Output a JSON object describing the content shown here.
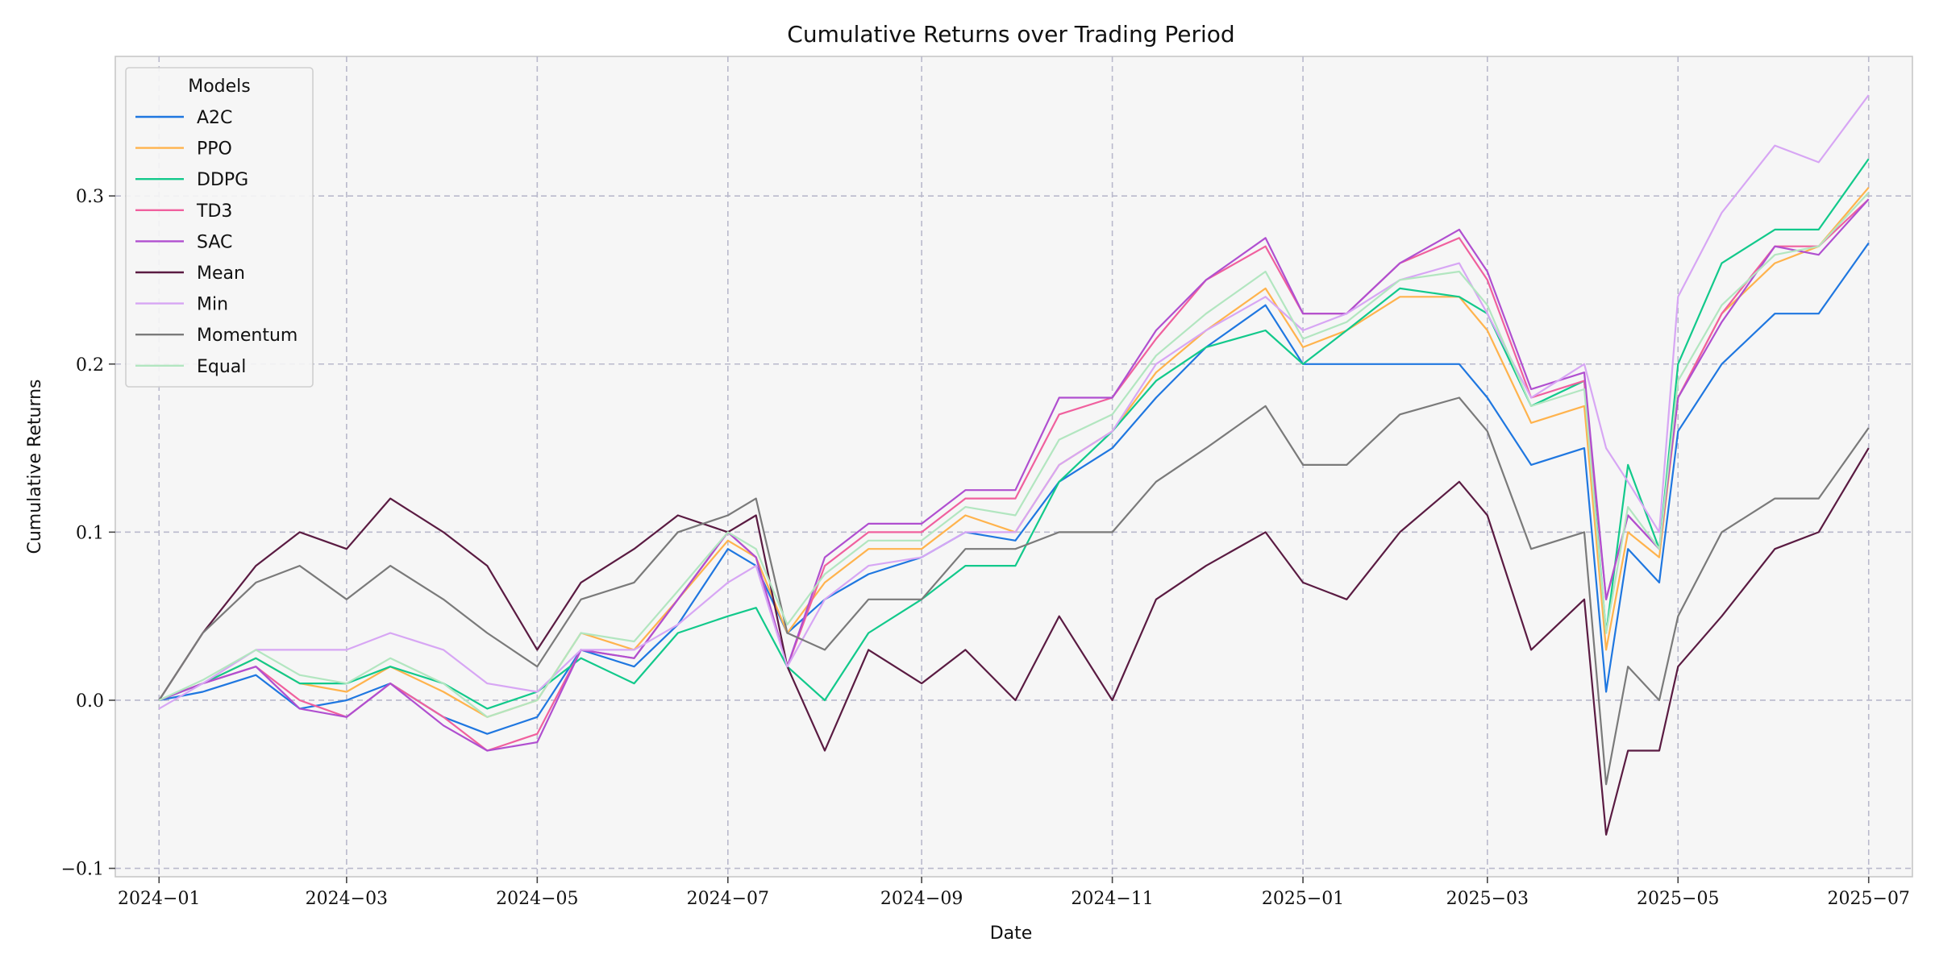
{
  "chart_data": {
    "type": "line",
    "title": "Cumulative Returns over Trading Period",
    "xlabel": "Date",
    "ylabel": "Cumulative Returns",
    "x_range": [
      "2023-12-18",
      "2025-07-15"
    ],
    "ylim": [
      -0.105,
      0.383
    ],
    "x_ticks": [
      {
        "date": "2024-01-01",
        "label": "2024−01"
      },
      {
        "date": "2024-03-01",
        "label": "2024−03"
      },
      {
        "date": "2024-05-01",
        "label": "2024−05"
      },
      {
        "date": "2024-07-01",
        "label": "2024−07"
      },
      {
        "date": "2024-09-01",
        "label": "2024−09"
      },
      {
        "date": "2024-11-01",
        "label": "2024−11"
      },
      {
        "date": "2025-01-01",
        "label": "2025−01"
      },
      {
        "date": "2025-03-01",
        "label": "2025−03"
      },
      {
        "date": "2025-05-01",
        "label": "2025−05"
      },
      {
        "date": "2025-07-01",
        "label": "2025−07"
      }
    ],
    "y_ticks": [
      {
        "value": -0.1,
        "label": "−0.1"
      },
      {
        "value": 0.0,
        "label": "0.0"
      },
      {
        "value": 0.1,
        "label": "0.1"
      },
      {
        "value": 0.2,
        "label": "0.2"
      },
      {
        "value": 0.3,
        "label": "0.3"
      }
    ],
    "grid": true,
    "legend": {
      "title": "Models",
      "placement": "top-left"
    },
    "x": [
      "2024-01-01",
      "2024-01-15",
      "2024-02-01",
      "2024-02-15",
      "2024-03-01",
      "2024-03-15",
      "2024-04-01",
      "2024-04-15",
      "2024-05-01",
      "2024-05-15",
      "2024-06-01",
      "2024-06-15",
      "2024-07-01",
      "2024-07-10",
      "2024-07-20",
      "2024-08-01",
      "2024-08-15",
      "2024-09-01",
      "2024-09-15",
      "2024-10-01",
      "2024-10-15",
      "2024-11-01",
      "2024-11-15",
      "2024-12-01",
      "2024-12-20",
      "2025-01-01",
      "2025-01-15",
      "2025-02-01",
      "2025-02-20",
      "2025-03-01",
      "2025-03-15",
      "2025-04-01",
      "2025-04-08",
      "2025-04-15",
      "2025-04-25",
      "2025-05-01",
      "2025-05-15",
      "2025-06-01",
      "2025-06-15",
      "2025-07-01"
    ],
    "series": [
      {
        "name": "A2C",
        "color": "#1f77e0",
        "values": [
          0.0,
          0.005,
          0.015,
          -0.005,
          0.0,
          0.01,
          -0.01,
          -0.02,
          -0.01,
          0.03,
          0.02,
          0.045,
          0.09,
          0.08,
          0.04,
          0.06,
          0.075,
          0.085,
          0.1,
          0.095,
          0.13,
          0.15,
          0.18,
          0.21,
          0.235,
          0.2,
          0.2,
          0.2,
          0.2,
          0.18,
          0.14,
          0.15,
          0.005,
          0.09,
          0.07,
          0.16,
          0.2,
          0.23,
          0.23,
          0.272
        ]
      },
      {
        "name": "PPO",
        "color": "#ffb34d",
        "values": [
          0.0,
          0.01,
          0.025,
          0.01,
          0.005,
          0.02,
          0.005,
          -0.01,
          0.0,
          0.04,
          0.03,
          0.06,
          0.095,
          0.085,
          0.04,
          0.07,
          0.09,
          0.09,
          0.11,
          0.1,
          0.14,
          0.16,
          0.195,
          0.22,
          0.245,
          0.21,
          0.22,
          0.24,
          0.24,
          0.22,
          0.165,
          0.175,
          0.03,
          0.1,
          0.085,
          0.18,
          0.23,
          0.26,
          0.27,
          0.305
        ]
      },
      {
        "name": "DDPG",
        "color": "#12c98b",
        "values": [
          0.0,
          0.01,
          0.025,
          0.01,
          0.01,
          0.02,
          0.01,
          -0.005,
          0.005,
          0.025,
          0.01,
          0.04,
          0.05,
          0.055,
          0.02,
          0.0,
          0.04,
          0.06,
          0.08,
          0.08,
          0.13,
          0.16,
          0.19,
          0.21,
          0.22,
          0.2,
          0.22,
          0.245,
          0.24,
          0.23,
          0.175,
          0.19,
          0.04,
          0.14,
          0.09,
          0.2,
          0.26,
          0.28,
          0.28,
          0.322
        ]
      },
      {
        "name": "TD3",
        "color": "#f0609e",
        "values": [
          0.0,
          0.01,
          0.02,
          0.0,
          -0.01,
          0.01,
          -0.01,
          -0.03,
          -0.02,
          0.03,
          0.025,
          0.06,
          0.1,
          0.085,
          0.02,
          0.08,
          0.1,
          0.1,
          0.12,
          0.12,
          0.17,
          0.18,
          0.215,
          0.25,
          0.27,
          0.23,
          0.23,
          0.26,
          0.275,
          0.25,
          0.18,
          0.19,
          0.06,
          0.11,
          0.09,
          0.18,
          0.23,
          0.27,
          0.27,
          0.298
        ]
      },
      {
        "name": "SAC",
        "color": "#b04fd0",
        "values": [
          0.0,
          0.01,
          0.02,
          -0.005,
          -0.01,
          0.01,
          -0.015,
          -0.03,
          -0.025,
          0.03,
          0.025,
          0.06,
          0.1,
          0.085,
          0.02,
          0.085,
          0.105,
          0.105,
          0.125,
          0.125,
          0.18,
          0.18,
          0.22,
          0.25,
          0.275,
          0.23,
          0.23,
          0.26,
          0.28,
          0.255,
          0.185,
          0.195,
          0.06,
          0.11,
          0.09,
          0.18,
          0.225,
          0.27,
          0.265,
          0.298
        ]
      },
      {
        "name": "Mean",
        "color": "#5a1b42",
        "values": [
          0.0,
          0.04,
          0.08,
          0.1,
          0.09,
          0.12,
          0.1,
          0.08,
          0.03,
          0.07,
          0.09,
          0.11,
          0.1,
          0.11,
          0.02,
          -0.03,
          0.03,
          0.01,
          0.03,
          0.0,
          0.05,
          0.0,
          0.06,
          0.08,
          0.1,
          0.07,
          0.06,
          0.1,
          0.13,
          0.11,
          0.03,
          0.06,
          -0.08,
          -0.03,
          -0.03,
          0.02,
          0.05,
          0.09,
          0.1,
          0.15
        ]
      },
      {
        "name": "Min",
        "color": "#d7a6f4",
        "values": [
          -0.005,
          0.01,
          0.03,
          0.03,
          0.03,
          0.04,
          0.03,
          0.01,
          0.005,
          0.03,
          0.03,
          0.045,
          0.07,
          0.08,
          0.02,
          0.06,
          0.08,
          0.085,
          0.1,
          0.1,
          0.14,
          0.16,
          0.2,
          0.22,
          0.24,
          0.22,
          0.23,
          0.25,
          0.26,
          0.23,
          0.18,
          0.2,
          0.15,
          0.13,
          0.1,
          0.24,
          0.29,
          0.33,
          0.32,
          0.36
        ]
      },
      {
        "name": "Momentum",
        "color": "#7a7a7a",
        "values": [
          0.0,
          0.04,
          0.07,
          0.08,
          0.06,
          0.08,
          0.06,
          0.04,
          0.02,
          0.06,
          0.07,
          0.1,
          0.11,
          0.12,
          0.04,
          0.03,
          0.06,
          0.06,
          0.09,
          0.09,
          0.1,
          0.1,
          0.13,
          0.15,
          0.175,
          0.14,
          0.14,
          0.17,
          0.18,
          0.16,
          0.09,
          0.1,
          -0.05,
          0.02,
          0.0,
          0.05,
          0.1,
          0.12,
          0.12,
          0.162
        ]
      },
      {
        "name": "Equal",
        "color": "#b2e6c0",
        "values": [
          0.0,
          0.012,
          0.03,
          0.015,
          0.01,
          0.025,
          0.01,
          -0.01,
          0.0,
          0.04,
          0.035,
          0.065,
          0.1,
          0.09,
          0.045,
          0.075,
          0.095,
          0.095,
          0.115,
          0.11,
          0.155,
          0.17,
          0.205,
          0.23,
          0.255,
          0.215,
          0.225,
          0.25,
          0.255,
          0.235,
          0.175,
          0.185,
          0.04,
          0.115,
          0.09,
          0.19,
          0.235,
          0.265,
          0.27,
          0.302
        ]
      }
    ]
  }
}
